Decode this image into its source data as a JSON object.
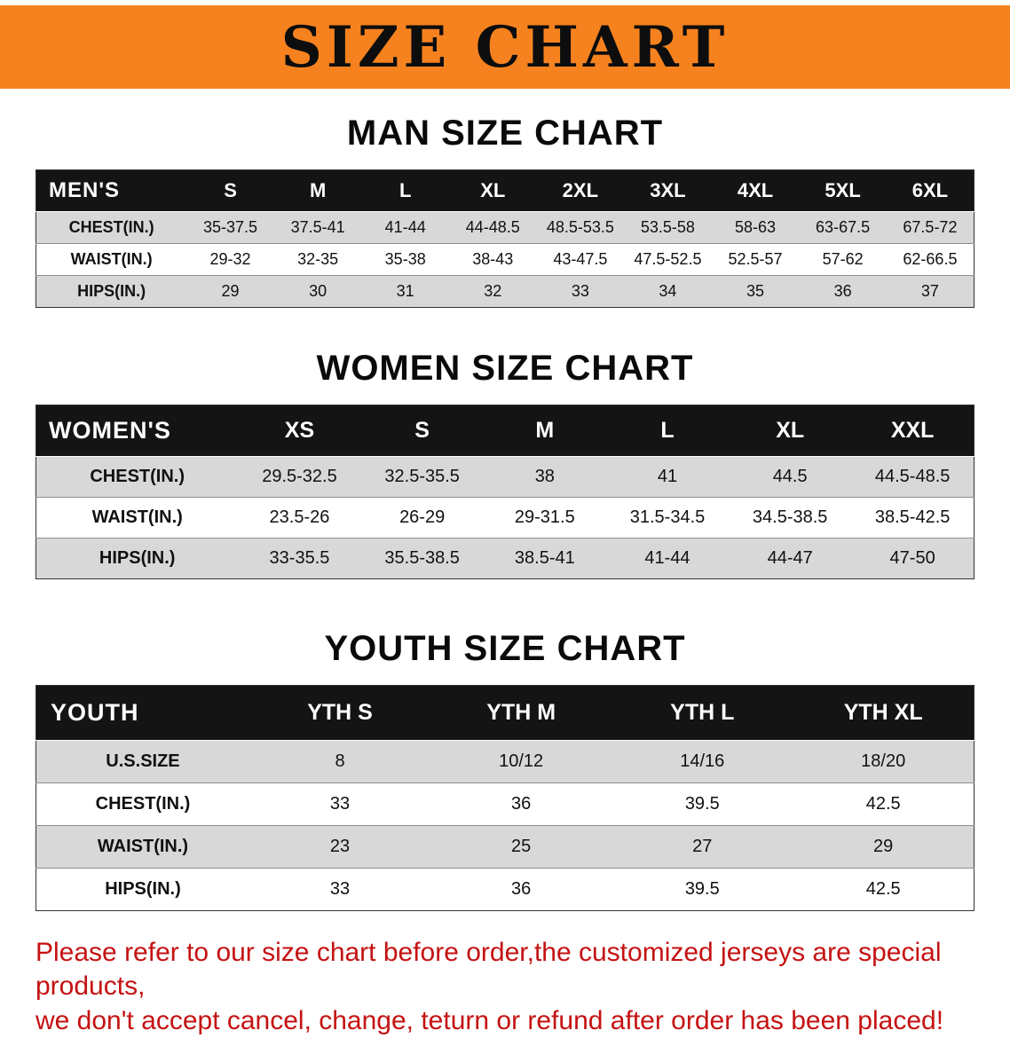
{
  "banner": {
    "title": "SIZE CHART"
  },
  "sections": [
    {
      "id": "men",
      "title": "MAN SIZE CHART",
      "table": {
        "header": [
          "MEN'S",
          "S",
          "M",
          "L",
          "XL",
          "2XL",
          "3XL",
          "4XL",
          "5XL",
          "6XL"
        ],
        "rows": [
          [
            "CHEST(IN.)",
            "35-37.5",
            "37.5-41",
            "41-44",
            "44-48.5",
            "48.5-53.5",
            "53.5-58",
            "58-63",
            "63-67.5",
            "67.5-72"
          ],
          [
            "WAIST(IN.)",
            "29-32",
            "32-35",
            "35-38",
            "38-43",
            "43-47.5",
            "47.5-52.5",
            "52.5-57",
            "57-62",
            "62-66.5"
          ],
          [
            "HIPS(IN.)",
            "29",
            "30",
            "31",
            "32",
            "33",
            "34",
            "35",
            "36",
            "37"
          ]
        ]
      }
    },
    {
      "id": "women",
      "title": "WOMEN SIZE CHART",
      "table": {
        "header": [
          "WOMEN'S",
          "XS",
          "S",
          "M",
          "L",
          "XL",
          "XXL"
        ],
        "rows": [
          [
            "CHEST(IN.)",
            "29.5-32.5",
            "32.5-35.5",
            "38",
            "41",
            "44.5",
            "44.5-48.5"
          ],
          [
            "WAIST(IN.)",
            "23.5-26",
            "26-29",
            "29-31.5",
            "31.5-34.5",
            "34.5-38.5",
            "38.5-42.5"
          ],
          [
            "HIPS(IN.)",
            "33-35.5",
            "35.5-38.5",
            "38.5-41",
            "41-44",
            "44-47",
            "47-50"
          ]
        ]
      }
    },
    {
      "id": "youth",
      "title": "YOUTH SIZE CHART",
      "table": {
        "header": [
          "YOUTH",
          "YTH S",
          "YTH M",
          "YTH L",
          "YTH XL"
        ],
        "rows": [
          [
            "U.S.SIZE",
            "8",
            "10/12",
            "14/16",
            "18/20"
          ],
          [
            "CHEST(IN.)",
            "33",
            "36",
            "39.5",
            "42.5"
          ],
          [
            "WAIST(IN.)",
            "23",
            "25",
            "27",
            "29"
          ],
          [
            "HIPS(IN.)",
            "33",
            "36",
            "39.5",
            "42.5"
          ]
        ]
      }
    }
  ],
  "disclaimer": {
    "lines": [
      "Please refer to our size chart before order,the customized jerseys are special products,",
      "we don't accept cancel, change, teturn or refund after order has been placed!"
    ]
  },
  "colors": {
    "banner": "#f6821f",
    "tableHeader": "#141414",
    "rowShade": "#d8d8d8",
    "noticeRed": "#c51212"
  }
}
